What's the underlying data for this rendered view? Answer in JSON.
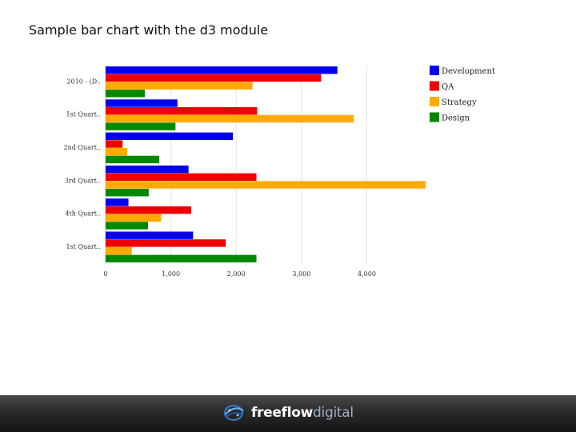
{
  "slide": {
    "title": "Sample bar chart with the d3 module"
  },
  "footer": {
    "brand_bold": "freeflow",
    "brand_light": "digital",
    "logo_icon": "globe-swirl-icon"
  },
  "chart_data": {
    "type": "bar",
    "orientation": "horizontal",
    "categories": [
      "2010 - (D..",
      "1st Quart..",
      "2nd Quart..",
      "3rd Quart..",
      "4th Quart..",
      "1st Quart.."
    ],
    "series": [
      {
        "name": "Development",
        "color": "#0000ee",
        "values": [
          3550,
          1100,
          1950,
          1270,
          350,
          1340
        ]
      },
      {
        "name": "QA",
        "color": "#ee0000",
        "values": [
          3300,
          2320,
          260,
          2310,
          1310,
          1840
        ]
      },
      {
        "name": "Strategy",
        "color": "#ffaa00",
        "values": [
          2250,
          3800,
          330,
          4900,
          850,
          400
        ]
      },
      {
        "name": "Design",
        "color": "#008800",
        "values": [
          600,
          1070,
          820,
          660,
          650,
          2310
        ]
      }
    ],
    "x_ticks": [
      "0",
      "1,000",
      "2,000",
      "3,000",
      "4,000"
    ],
    "x_tick_values": [
      0,
      1000,
      2000,
      3000,
      4000
    ],
    "xlim": [
      0,
      4950
    ],
    "grid": true,
    "legend": "right"
  }
}
